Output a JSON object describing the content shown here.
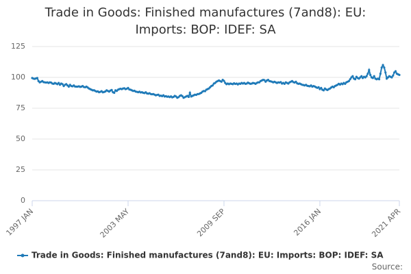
{
  "chart_data": {
    "type": "line",
    "title": "Trade in Goods: Finished manufactures (7and8): EU: Imports: BOP: IDEF: SA",
    "source": "Source:",
    "categories": [
      "1997 JAN",
      null,
      null,
      null,
      null,
      null,
      null,
      null,
      null,
      null,
      null,
      null,
      null,
      null,
      null,
      null,
      null,
      null,
      null,
      null,
      null,
      null,
      null,
      null,
      null,
      null,
      null,
      null,
      null,
      null,
      null,
      null,
      null,
      null,
      null,
      null,
      null,
      null,
      null,
      null,
      null,
      null,
      null,
      null,
      null,
      null,
      null,
      null,
      null,
      null,
      null,
      null,
      null,
      null,
      null,
      null,
      null,
      null,
      null,
      null,
      null,
      null,
      null,
      null,
      null,
      null,
      null,
      null,
      null,
      null,
      null,
      null,
      null,
      null,
      null,
      null,
      "2003 MAY",
      null,
      null,
      null,
      null,
      null,
      null,
      null,
      null,
      null,
      null,
      null,
      null,
      null,
      null,
      null,
      null,
      null,
      null,
      null,
      null,
      null,
      null,
      null,
      null,
      null,
      null,
      null,
      null,
      null,
      null,
      null,
      null,
      null,
      null,
      null,
      null,
      null,
      null,
      null,
      null,
      null,
      null,
      null,
      null,
      null,
      null,
      null,
      null,
      null,
      null,
      null,
      null,
      null,
      null,
      null,
      null,
      null,
      null,
      null,
      null,
      null,
      null,
      null,
      null,
      null,
      null,
      null,
      null,
      null,
      null,
      null,
      null,
      null,
      null,
      null,
      "2009 SEP",
      null,
      null,
      null,
      null,
      null,
      null,
      null,
      null,
      null,
      null,
      null,
      null,
      null,
      null,
      null,
      null,
      null,
      null,
      null,
      null,
      null,
      null,
      null,
      null,
      null,
      null,
      null,
      null,
      null,
      null,
      null,
      null,
      null,
      null,
      null,
      null,
      null,
      null,
      null,
      null,
      null,
      null,
      null,
      null,
      null,
      null,
      null,
      null,
      null,
      null,
      null,
      null,
      null,
      null,
      null,
      null,
      null,
      null,
      null,
      null,
      null,
      null,
      null,
      null,
      null,
      null,
      null,
      null,
      null,
      null,
      null,
      null,
      null,
      null,
      null,
      "2016 JAN",
      null,
      null,
      null,
      null,
      null,
      null,
      null,
      null,
      null,
      null,
      null,
      null,
      null,
      null,
      null,
      null,
      null,
      null,
      null,
      null,
      null,
      null,
      null,
      null,
      null,
      null,
      null,
      null,
      null,
      null,
      null,
      null,
      null,
      null,
      null,
      null,
      null,
      null,
      null,
      null,
      null,
      null,
      null,
      null,
      null,
      null,
      null,
      null,
      null,
      null,
      null,
      null,
      null,
      null,
      null,
      null,
      null,
      null,
      null,
      null,
      null,
      null,
      "2021 APR"
    ],
    "series": [
      {
        "name": "Trade in Goods: Finished manufactures (7and8): EU: Imports: BOP: IDEF: SA",
        "color": "#1f7ab8",
        "values": [
          99.5,
          99,
          98.8,
          99.2,
          99.5,
          97,
          96,
          96.5,
          97,
          96.2,
          96,
          95.8,
          96,
          95.5,
          96,
          95.8,
          95,
          94.8,
          95.5,
          95,
          94.5,
          95.5,
          94,
          95,
          94.5,
          93,
          94,
          94.5,
          93.5,
          92.5,
          94,
          93,
          92.8,
          93.5,
          92.6,
          92.5,
          92.5,
          92.8,
          92.3,
          92.5,
          93,
          92.2,
          92,
          92.5,
          91.8,
          91,
          90.5,
          90,
          89.5,
          89.6,
          89,
          88.5,
          88.7,
          88,
          88.3,
          88.8,
          87.9,
          88.2,
          88.6,
          89.5,
          89,
          88.5,
          89.3,
          89.8,
          88,
          87.5,
          89.5,
          89,
          90,
          90.5,
          90.8,
          90.5,
          91,
          91.2,
          90.5,
          90.8,
          91.5,
          90.2,
          90,
          89.5,
          89,
          89.2,
          88.5,
          88.3,
          88,
          88.4,
          87.8,
          88,
          87.5,
          87.3,
          87.9,
          87,
          86.8,
          87.2,
          86.5,
          86.3,
          86.5,
          86,
          85.5,
          85.8,
          86,
          85,
          85.2,
          84.8,
          85.5,
          84.5,
          84.8,
          84.3,
          84.5,
          84,
          84.6,
          83.8,
          84.2,
          85,
          84.5,
          83.5,
          84,
          85,
          85.5,
          84.8,
          83.5,
          84,
          84.5,
          85,
          84.2,
          87.5,
          84.5,
          85,
          85.5,
          86,
          85.8,
          86.5,
          86.5,
          87,
          87.5,
          88.5,
          89,
          88.8,
          90,
          90.5,
          91,
          92,
          93,
          93.5,
          95,
          95.5,
          96.5,
          97,
          97.5,
          97,
          96.5,
          98,
          97.2,
          95.5,
          94.5,
          95,
          94.5,
          95,
          94.8,
          94.5,
          95.2,
          94.7,
          95,
          94.3,
          95,
          94.8,
          95.5,
          95,
          95.5,
          94.8,
          95,
          95.8,
          95.2,
          94.8,
          95,
          95.5,
          95.3,
          94.8,
          95.5,
          96,
          96,
          97,
          97.5,
          98,
          97.8,
          96.5,
          97.5,
          98,
          97,
          96.8,
          96.5,
          96,
          96.5,
          96,
          95.5,
          96,
          95.8,
          96.2,
          95,
          95.5,
          94.8,
          96,
          95.5,
          95,
          96,
          96.5,
          97,
          96.2,
          95.8,
          96.5,
          95.2,
          94.8,
          95,
          94.5,
          94,
          93.8,
          93.5,
          94,
          93.2,
          93,
          92.8,
          93.5,
          92.5,
          93,
          92.6,
          92,
          91.5,
          92,
          90.5,
          91.5,
          90,
          89.5,
          91,
          90.2,
          89.8,
          90.5,
          91,
          91.8,
          92.5,
          92,
          93,
          93.5,
          94,
          94.8,
          94.2,
          95,
          94.5,
          95.5,
          94.8,
          96,
          96.5,
          97,
          98.5,
          100,
          101,
          99,
          98.5,
          100.5,
          99.5,
          99,
          100,
          101,
          99.5,
          100.5,
          100,
          101,
          103,
          106,
          102,
          100,
          99.5,
          101,
          99,
          98.5,
          99,
          98.5,
          103,
          108,
          110,
          108,
          104,
          99,
          100,
          101,
          100.5,
          100,
          101.5,
          104,
          105,
          103,
          102.5,
          102
        ]
      }
    ],
    "ylim": [
      0,
      125
    ],
    "yticks": [
      0,
      25,
      50,
      75,
      100,
      125
    ],
    "grid": true
  }
}
